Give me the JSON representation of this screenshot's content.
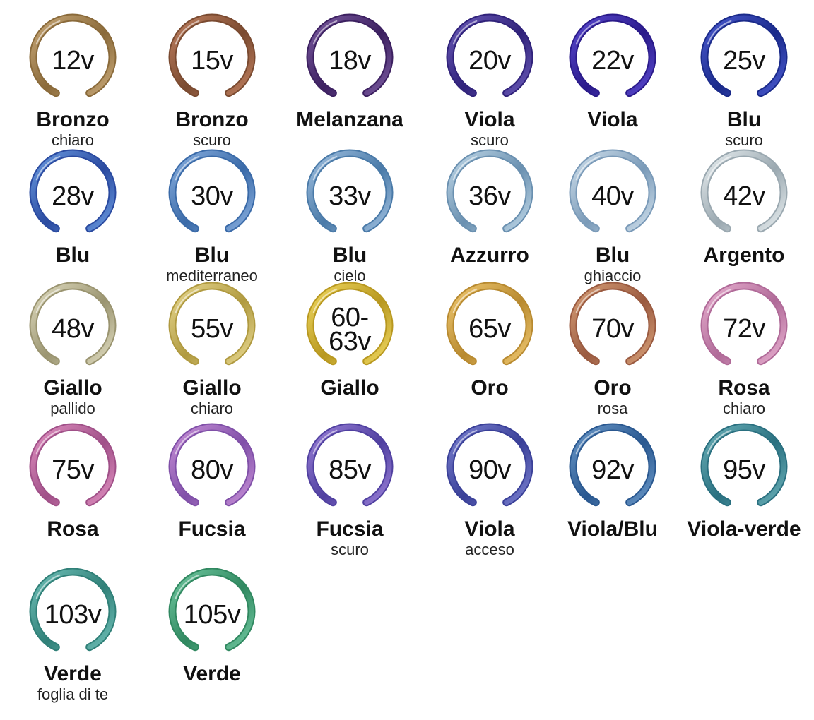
{
  "swatches": [
    {
      "voltage": "12v",
      "name": "Bronzo",
      "shade": "chiaro",
      "colors": [
        "#c8a878",
        "#8a6a3a"
      ]
    },
    {
      "voltage": "15v",
      "name": "Bronzo",
      "shade": "scuro",
      "colors": [
        "#c08060",
        "#7a4a30"
      ]
    },
    {
      "voltage": "18v",
      "name": "Melanzana",
      "shade": "",
      "colors": [
        "#7a5aa0",
        "#3c2060"
      ]
    },
    {
      "voltage": "20v",
      "name": "Viola",
      "shade": "scuro",
      "colors": [
        "#6a5ab8",
        "#30227a"
      ]
    },
    {
      "voltage": "22v",
      "name": "Viola",
      "shade": "",
      "colors": [
        "#5a4ad0",
        "#2a1a8a"
      ]
    },
    {
      "voltage": "25v",
      "name": "Blu",
      "shade": "scuro",
      "colors": [
        "#4a5ad0",
        "#1a2a8a"
      ]
    },
    {
      "voltage": "28v",
      "name": "Blu",
      "shade": "",
      "colors": [
        "#6a9ae0",
        "#2a4aa0"
      ]
    },
    {
      "voltage": "30v",
      "name": "Blu",
      "shade": "mediterraneo",
      "colors": [
        "#8ab0e0",
        "#3a6aa8"
      ]
    },
    {
      "voltage": "33v",
      "name": "Blu",
      "shade": "cielo",
      "colors": [
        "#a0c0e0",
        "#4a7aa8"
      ]
    },
    {
      "voltage": "36v",
      "name": "Azzurro",
      "shade": "",
      "colors": [
        "#c0d8e8",
        "#6a90b0"
      ]
    },
    {
      "voltage": "40v",
      "name": "Blu",
      "shade": "ghiaccio",
      "colors": [
        "#d0e0ec",
        "#7a9ab8"
      ]
    },
    {
      "voltage": "42v",
      "name": "Argento",
      "shade": "",
      "colors": [
        "#e8eef0",
        "#9aa8b0"
      ]
    },
    {
      "voltage": "48v",
      "name": "Giallo",
      "shade": "pallido",
      "colors": [
        "#e0dcc0",
        "#9a9470"
      ]
    },
    {
      "voltage": "55v",
      "name": "Giallo",
      "shade": "chiaro",
      "colors": [
        "#e8d890",
        "#b09a40"
      ]
    },
    {
      "voltage": "60-\n63v",
      "name": "Giallo",
      "shade": "",
      "colors": [
        "#f0d860",
        "#b89820"
      ]
    },
    {
      "voltage": "65v",
      "name": "Oro",
      "shade": "",
      "colors": [
        "#f0c870",
        "#b88a30"
      ]
    },
    {
      "voltage": "70v",
      "name": "Oro",
      "shade": "rosa",
      "colors": [
        "#d8a078",
        "#9a5a40"
      ]
    },
    {
      "voltage": "72v",
      "name": "Rosa",
      "shade": "chiaro",
      "colors": [
        "#e8b0d0",
        "#b06a98"
      ]
    },
    {
      "voltage": "75v",
      "name": "Rosa",
      "shade": "",
      "colors": [
        "#e090c0",
        "#a05088"
      ]
    },
    {
      "voltage": "80v",
      "name": "Fucsia",
      "shade": "",
      "colors": [
        "#c890d8",
        "#8050a8"
      ]
    },
    {
      "voltage": "85v",
      "name": "Fucsia",
      "shade": "scuro",
      "colors": [
        "#9a80d8",
        "#5040a0"
      ]
    },
    {
      "voltage": "90v",
      "name": "Viola",
      "shade": "acceso",
      "colors": [
        "#7a80d0",
        "#3a4098"
      ]
    },
    {
      "voltage": "92v",
      "name": "Viola/Blu",
      "shade": "",
      "colors": [
        "#6a98c8",
        "#2a5890"
      ]
    },
    {
      "voltage": "95v",
      "name": "Viola-verde",
      "shade": "",
      "colors": [
        "#6ab0b8",
        "#2a7080"
      ]
    },
    {
      "voltage": "103v",
      "name": "Verde",
      "shade": "foglia di te",
      "colors": [
        "#70c0b8",
        "#308078"
      ]
    },
    {
      "voltage": "105v",
      "name": "Verde",
      "shade": "",
      "colors": [
        "#70c8a0",
        "#308860"
      ]
    }
  ]
}
